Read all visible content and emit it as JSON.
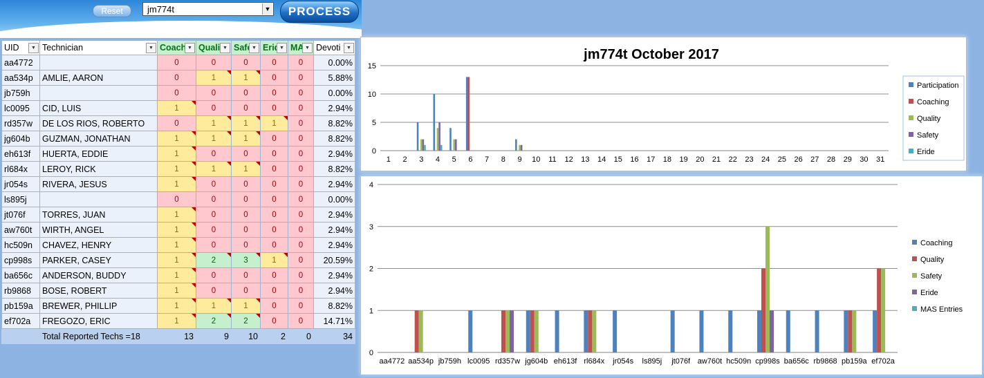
{
  "header": {
    "reset_label": "Reset",
    "selected_uid": "jm774t",
    "process_label": "PROCESS"
  },
  "table": {
    "headers": [
      "UID",
      "Technician",
      "Coachi",
      "Quali",
      "Safe",
      "Erid",
      "MA",
      "Devoti"
    ],
    "rows": [
      {
        "uid": "aa4772",
        "name": "",
        "c": 0,
        "q": 0,
        "s": 0,
        "e": 0,
        "m": 0,
        "dev": "0.00%"
      },
      {
        "uid": "aa534p",
        "name": "AMLIE, AARON",
        "c": 0,
        "q": 1,
        "s": 1,
        "e": 0,
        "m": 0,
        "dev": "5.88%"
      },
      {
        "uid": "jb759h",
        "name": "",
        "c": 0,
        "q": 0,
        "s": 0,
        "e": 0,
        "m": 0,
        "dev": "0.00%"
      },
      {
        "uid": "lc0095",
        "name": "CID, LUIS",
        "c": 1,
        "q": 0,
        "s": 0,
        "e": 0,
        "m": 0,
        "dev": "2.94%"
      },
      {
        "uid": "rd357w",
        "name": "DE LOS RIOS, ROBERTO",
        "c": 0,
        "q": 1,
        "s": 1,
        "e": 1,
        "m": 0,
        "dev": "8.82%"
      },
      {
        "uid": "jg604b",
        "name": "GUZMAN, JONATHAN",
        "c": 1,
        "q": 1,
        "s": 1,
        "e": 0,
        "m": 0,
        "dev": "8.82%"
      },
      {
        "uid": "eh613f",
        "name": "HUERTA, EDDIE",
        "c": 1,
        "q": 0,
        "s": 0,
        "e": 0,
        "m": 0,
        "dev": "2.94%"
      },
      {
        "uid": "rl684x",
        "name": "LEROY, RICK",
        "c": 1,
        "q": 1,
        "s": 1,
        "e": 0,
        "m": 0,
        "dev": "8.82%"
      },
      {
        "uid": "jr054s",
        "name": "RIVERA, JESUS",
        "c": 1,
        "q": 0,
        "s": 0,
        "e": 0,
        "m": 0,
        "dev": "2.94%"
      },
      {
        "uid": "ls895j",
        "name": "",
        "c": 0,
        "q": 0,
        "s": 0,
        "e": 0,
        "m": 0,
        "dev": "0.00%"
      },
      {
        "uid": "jt076f",
        "name": "TORRES, JUAN",
        "c": 1,
        "q": 0,
        "s": 0,
        "e": 0,
        "m": 0,
        "dev": "2.94%"
      },
      {
        "uid": "aw760t",
        "name": "WIRTH, ANGEL",
        "c": 1,
        "q": 0,
        "s": 0,
        "e": 0,
        "m": 0,
        "dev": "2.94%"
      },
      {
        "uid": "hc509n",
        "name": "CHAVEZ, HENRY",
        "c": 1,
        "q": 0,
        "s": 0,
        "e": 0,
        "m": 0,
        "dev": "2.94%"
      },
      {
        "uid": "cp998s",
        "name": "PARKER, CASEY",
        "c": 1,
        "q": 2,
        "s": 3,
        "e": 1,
        "m": 0,
        "dev": "20.59%"
      },
      {
        "uid": "ba656c",
        "name": "ANDERSON, BUDDY",
        "c": 1,
        "q": 0,
        "s": 0,
        "e": 0,
        "m": 0,
        "dev": "2.94%"
      },
      {
        "uid": "rb9868",
        "name": "BOSE, ROBERT",
        "c": 1,
        "q": 0,
        "s": 0,
        "e": 0,
        "m": 0,
        "dev": "2.94%"
      },
      {
        "uid": "pb159a",
        "name": "BREWER, PHILLIP",
        "c": 1,
        "q": 1,
        "s": 1,
        "e": 0,
        "m": 0,
        "dev": "8.82%"
      },
      {
        "uid": "ef702a",
        "name": "FREGOZO, ERIC",
        "c": 1,
        "q": 2,
        "s": 2,
        "e": 0,
        "m": 0,
        "dev": "14.71%"
      }
    ],
    "total": {
      "label": "Total Reported Techs =18",
      "c": "13",
      "q": "9",
      "s": "10",
      "e": "2",
      "m": "0",
      "dev": "34"
    }
  },
  "colors": {
    "blue": "#4f81bd",
    "red": "#c0504d",
    "green": "#9bbb59",
    "purple": "#8064a2",
    "teal": "#4bacc6"
  },
  "chart_data": [
    {
      "type": "bar",
      "title": "jm774t  October 2017",
      "categories": [
        "1",
        "2",
        "3",
        "4",
        "5",
        "6",
        "7",
        "8",
        "9",
        "10",
        "11",
        "12",
        "13",
        "14",
        "15",
        "16",
        "17",
        "18",
        "19",
        "20",
        "21",
        "22",
        "23",
        "24",
        "25",
        "26",
        "27",
        "28",
        "29",
        "30",
        "31"
      ],
      "ylim": [
        0,
        15
      ],
      "yticks": [
        0,
        5,
        10,
        15
      ],
      "grid": true,
      "legend": "right",
      "series": [
        {
          "name": "Participation",
          "values": [
            0,
            0,
            5,
            10,
            4,
            13,
            0,
            0,
            2,
            0,
            0,
            0,
            0,
            0,
            0,
            0,
            0,
            0,
            0,
            0,
            0,
            0,
            0,
            0,
            0,
            0,
            0,
            0,
            0,
            0,
            0
          ]
        },
        {
          "name": "Coaching",
          "values": [
            0,
            0,
            0,
            0,
            0,
            13,
            0,
            0,
            0,
            0,
            0,
            0,
            0,
            0,
            0,
            0,
            0,
            0,
            0,
            0,
            0,
            0,
            0,
            0,
            0,
            0,
            0,
            0,
            0,
            0,
            0
          ]
        },
        {
          "name": "Quality",
          "values": [
            0,
            0,
            2,
            4,
            2,
            0,
            0,
            0,
            1,
            0,
            0,
            0,
            0,
            0,
            0,
            0,
            0,
            0,
            0,
            0,
            0,
            0,
            0,
            0,
            0,
            0,
            0,
            0,
            0,
            0,
            0
          ]
        },
        {
          "name": "Safety",
          "values": [
            0,
            0,
            2,
            5,
            2,
            0,
            0,
            0,
            1,
            0,
            0,
            0,
            0,
            0,
            0,
            0,
            0,
            0,
            0,
            0,
            0,
            0,
            0,
            0,
            0,
            0,
            0,
            0,
            0,
            0,
            0
          ]
        },
        {
          "name": "Eride",
          "values": [
            0,
            0,
            1,
            1,
            0,
            0,
            0,
            0,
            0,
            0,
            0,
            0,
            0,
            0,
            0,
            0,
            0,
            0,
            0,
            0,
            0,
            0,
            0,
            0,
            0,
            0,
            0,
            0,
            0,
            0,
            0
          ]
        }
      ]
    },
    {
      "type": "bar",
      "categories": [
        "aa4772",
        "aa534p",
        "jb759h",
        "lc0095",
        "rd357w",
        "jg604b",
        "eh613f",
        "rl684x",
        "jr054s",
        "ls895j",
        "jt076f",
        "aw760t",
        "hc509n",
        "cp998s",
        "ba656c",
        "rb9868",
        "pb159a",
        "ef702a"
      ],
      "ylim": [
        0,
        4
      ],
      "yticks": [
        0,
        1,
        2,
        3,
        4
      ],
      "grid": true,
      "legend": "right",
      "series": [
        {
          "name": "Coaching",
          "values": [
            0,
            0,
            0,
            1,
            0,
            1,
            1,
            1,
            1,
            0,
            1,
            1,
            1,
            1,
            1,
            1,
            1,
            1
          ]
        },
        {
          "name": "Quality",
          "values": [
            0,
            1,
            0,
            0,
            1,
            1,
            0,
            1,
            0,
            0,
            0,
            0,
            0,
            2,
            0,
            0,
            1,
            2
          ]
        },
        {
          "name": "Safety",
          "values": [
            0,
            1,
            0,
            0,
            1,
            1,
            0,
            1,
            0,
            0,
            0,
            0,
            0,
            3,
            0,
            0,
            1,
            2
          ]
        },
        {
          "name": "Eride",
          "values": [
            0,
            0,
            0,
            0,
            1,
            0,
            0,
            0,
            0,
            0,
            0,
            0,
            0,
            1,
            0,
            0,
            0,
            0
          ]
        },
        {
          "name": "MAS Entries",
          "values": [
            0,
            0,
            0,
            0,
            0,
            0,
            0,
            0,
            0,
            0,
            0,
            0,
            0,
            0,
            0,
            0,
            0,
            0
          ]
        }
      ]
    }
  ]
}
